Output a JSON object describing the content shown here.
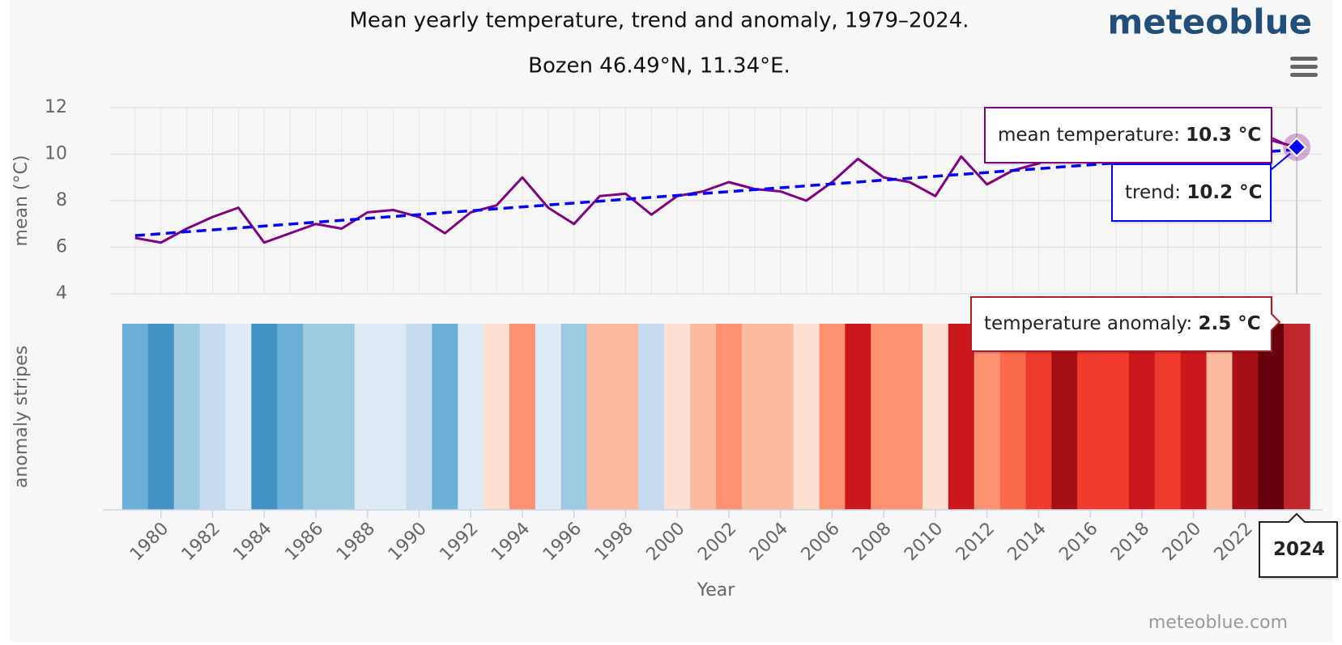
{
  "chart_data": {
    "type": "line",
    "title": "Mean yearly temperature, trend and anomaly, 1979–2024.",
    "subtitle": "Bozen 46.49°N, 11.34°E.",
    "x_label": "Year",
    "y_label": "mean (°C)",
    "stripes_label": "anomaly stripes",
    "x": [
      1979,
      1980,
      1981,
      1982,
      1983,
      1984,
      1985,
      1986,
      1987,
      1988,
      1989,
      1990,
      1991,
      1992,
      1993,
      1994,
      1995,
      1996,
      1997,
      1998,
      1999,
      2000,
      2001,
      2002,
      2003,
      2004,
      2005,
      2006,
      2007,
      2008,
      2009,
      2010,
      2011,
      2012,
      2013,
      2014,
      2015,
      2016,
      2017,
      2018,
      2019,
      2020,
      2021,
      2022,
      2023,
      2024
    ],
    "xlim": [
      1978,
      2025
    ],
    "xticks": [
      1980,
      1982,
      1984,
      1986,
      1988,
      1990,
      1992,
      1994,
      1996,
      1998,
      2000,
      2002,
      2004,
      2006,
      2008,
      2010,
      2012,
      2014,
      2016,
      2018,
      2020,
      2022
    ],
    "ylim": [
      4,
      12
    ],
    "yticks": [
      4,
      6,
      8,
      10,
      12
    ],
    "grid": true,
    "series": [
      {
        "name": "mean temperature",
        "color": "#800080",
        "values": [
          6.4,
          6.2,
          6.8,
          7.3,
          7.7,
          6.2,
          6.6,
          7.0,
          6.8,
          7.5,
          7.6,
          7.3,
          6.6,
          7.5,
          7.8,
          9.0,
          7.7,
          7.0,
          8.2,
          8.3,
          7.4,
          8.2,
          8.4,
          8.8,
          8.5,
          8.4,
          8.0,
          8.8,
          9.8,
          9.0,
          8.8,
          8.2,
          9.9,
          8.7,
          9.3,
          9.6,
          10.1,
          9.8,
          9.7,
          10.1,
          9.9,
          10.0,
          9.4,
          10.4,
          10.6,
          10.3
        ]
      },
      {
        "name": "trend",
        "color": "#0000ff",
        "dashed": true,
        "x": [
          1979,
          2024
        ],
        "values": [
          6.5,
          10.2
        ]
      },
      {
        "name": "temperature anomaly",
        "type": "stripes",
        "values": [
          -1.2,
          -1.6,
          -0.9,
          -0.6,
          -0.3,
          -1.6,
          -1.2,
          -0.9,
          -0.9,
          -0.3,
          -0.3,
          -0.6,
          -1.2,
          -0.3,
          0.1,
          0.8,
          -0.3,
          -0.9,
          0.4,
          0.4,
          -0.6,
          0.1,
          0.4,
          0.8,
          0.4,
          0.4,
          0.1,
          0.8,
          1.9,
          0.8,
          0.8,
          0.1,
          1.9,
          0.8,
          1.2,
          1.5,
          2.2,
          1.5,
          1.5,
          1.9,
          1.5,
          1.9,
          0.4,
          2.2,
          2.8,
          2.5
        ],
        "colors": [
          "#6baed6",
          "#4292c6",
          "#9ecae1",
          "#c6dbef",
          "#deebf7",
          "#4292c6",
          "#6baed6",
          "#9ecae1",
          "#9ecae1",
          "#deebf7",
          "#deebf7",
          "#c6dbef",
          "#6baed6",
          "#deebf7",
          "#fee0d2",
          "#fc9272",
          "#deebf7",
          "#9ecae1",
          "#fcbba1",
          "#fcbba1",
          "#c6dbef",
          "#fee0d2",
          "#fcbba1",
          "#fc9272",
          "#fcbba1",
          "#fcbba1",
          "#fee0d2",
          "#fc9272",
          "#cb181d",
          "#fc9272",
          "#fc9272",
          "#fee0d2",
          "#cb181d",
          "#fc9272",
          "#fb6a4a",
          "#ef3b2c",
          "#a50f15",
          "#ef3b2c",
          "#ef3b2c",
          "#cb181d",
          "#ef3b2c",
          "#cb181d",
          "#fcbba1",
          "#a50f15",
          "#67000d",
          "#c1272d"
        ]
      }
    ],
    "tooltip": {
      "x": "2024",
      "values": [
        "10.3 °C",
        "10.2 °C",
        "2.5 °C"
      ]
    }
  },
  "branding": {
    "logo": "meteoblue",
    "credit": "meteoblue.com"
  }
}
